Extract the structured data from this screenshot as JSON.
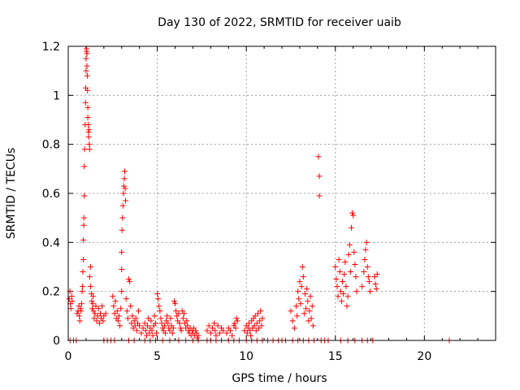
{
  "chart_data": {
    "type": "scatter",
    "title": "Day 130 of 2022, SRMTID for receiver uaib",
    "xlabel": "GPS time / hours",
    "ylabel": "SRMTID / TECUs",
    "xlim": [
      0,
      24
    ],
    "ylim": [
      0,
      1.2
    ],
    "x_ticks": [
      0,
      5,
      10,
      15,
      20
    ],
    "x_tick_labels": [
      "0",
      "5",
      "10",
      "15",
      "20"
    ],
    "y_ticks": [
      0,
      0.2,
      0.4,
      0.6,
      0.8,
      1.0,
      1.2
    ],
    "y_tick_labels": [
      "0",
      "0.2",
      "0.4",
      "0.6",
      "0.8",
      "1",
      "1.2"
    ],
    "grid": true,
    "marker": "+",
    "marker_color": "#ff0000",
    "series": [
      {
        "name": "SRMTID",
        "points": [
          [
            0.05,
            0.17
          ],
          [
            0.1,
            0.2
          ],
          [
            0.12,
            0.15
          ],
          [
            0.15,
            0.13
          ],
          [
            0.2,
            0.18
          ],
          [
            0.22,
            0.16
          ],
          [
            0.1,
            0.0
          ],
          [
            0.3,
            0.0
          ],
          [
            0.45,
            0.0
          ],
          [
            0.5,
            0.11
          ],
          [
            0.55,
            0.12
          ],
          [
            0.6,
            0.14
          ],
          [
            0.62,
            0.1
          ],
          [
            0.65,
            0.08
          ],
          [
            0.7,
            0.13
          ],
          [
            0.72,
            0.12
          ],
          [
            0.75,
            0.15
          ],
          [
            0.78,
            0.2
          ],
          [
            0.8,
            0.22
          ],
          [
            0.82,
            0.28
          ],
          [
            0.85,
            0.33
          ],
          [
            0.85,
            0.41
          ],
          [
            0.87,
            0.47
          ],
          [
            0.88,
            0.5
          ],
          [
            0.9,
            0.59
          ],
          [
            0.9,
            0.71
          ],
          [
            0.92,
            0.78
          ],
          [
            0.95,
            0.88
          ],
          [
            0.97,
            0.97
          ],
          [
            0.98,
            1.03
          ],
          [
            1.0,
            1.1
          ],
          [
            1.0,
            1.15
          ],
          [
            1.02,
            1.18
          ],
          [
            1.03,
            1.19
          ],
          [
            1.05,
            1.17
          ],
          [
            1.05,
            1.12
          ],
          [
            1.07,
            1.08
          ],
          [
            1.08,
            1.02
          ],
          [
            1.1,
            0.95
          ],
          [
            1.1,
            0.91
          ],
          [
            1.12,
            0.88
          ],
          [
            1.14,
            0.85
          ],
          [
            1.15,
            0.83
          ],
          [
            1.17,
            0.86
          ],
          [
            1.18,
            0.8
          ],
          [
            1.2,
            0.78
          ],
          [
            1.2,
            0.26
          ],
          [
            1.25,
            0.3
          ],
          [
            1.25,
            0.22
          ],
          [
            1.3,
            0.19
          ],
          [
            1.32,
            0.16
          ],
          [
            1.35,
            0.13
          ],
          [
            1.38,
            0.15
          ],
          [
            1.4,
            0.18
          ],
          [
            1.42,
            0.12
          ],
          [
            1.45,
            0.09
          ],
          [
            1.5,
            0.11
          ],
          [
            1.55,
            0.14
          ],
          [
            1.6,
            0.08
          ],
          [
            1.65,
            0.1
          ],
          [
            1.7,
            0.13
          ],
          [
            1.75,
            0.07
          ],
          [
            1.8,
            0.11
          ],
          [
            1.85,
            0.09
          ],
          [
            1.9,
            0.14
          ],
          [
            1.95,
            0.08
          ],
          [
            2.0,
            0.1
          ],
          [
            2.0,
            0.0
          ],
          [
            2.1,
            0.11
          ],
          [
            2.2,
            0.0
          ],
          [
            2.4,
            0.0
          ],
          [
            2.5,
            0.18
          ],
          [
            2.55,
            0.14
          ],
          [
            2.6,
            0.11
          ],
          [
            2.65,
            0.16
          ],
          [
            2.7,
            0.09
          ],
          [
            2.75,
            0.12
          ],
          [
            2.8,
            0.08
          ],
          [
            2.85,
            0.1
          ],
          [
            2.9,
            0.06
          ],
          [
            2.95,
            0.13
          ],
          [
            2.6,
            0.0
          ],
          [
            3.0,
            0.2
          ],
          [
            3.0,
            0.29
          ],
          [
            3.0,
            0.36
          ],
          [
            3.02,
            0.45
          ],
          [
            3.05,
            0.5
          ],
          [
            3.07,
            0.55
          ],
          [
            3.1,
            0.6
          ],
          [
            3.12,
            0.63
          ],
          [
            3.15,
            0.66
          ],
          [
            3.17,
            0.69
          ],
          [
            3.2,
            0.62
          ],
          [
            3.22,
            0.57
          ],
          [
            3.25,
            0.17
          ],
          [
            3.3,
            0.12
          ],
          [
            3.35,
            0.09
          ],
          [
            3.4,
            0.25
          ],
          [
            3.45,
            0.24
          ],
          [
            3.5,
            0.14
          ],
          [
            3.55,
            0.07
          ],
          [
            3.6,
            0.1
          ],
          [
            3.65,
            0.05
          ],
          [
            3.7,
            0.08
          ],
          [
            3.75,
            0.06
          ],
          [
            3.8,
            0.09
          ],
          [
            3.85,
            0.04
          ],
          [
            3.9,
            0.07
          ],
          [
            3.95,
            0.12
          ],
          [
            4.0,
            0.06
          ],
          [
            3.4,
            0.0
          ],
          [
            3.7,
            0.0
          ],
          [
            4.1,
            0.03
          ],
          [
            4.2,
            0.05
          ],
          [
            4.3,
            0.07
          ],
          [
            4.35,
            0.04
          ],
          [
            4.4,
            0.02
          ],
          [
            4.45,
            0.06
          ],
          [
            4.5,
            0.09
          ],
          [
            4.55,
            0.03
          ],
          [
            4.6,
            0.05
          ],
          [
            4.65,
            0.08
          ],
          [
            4.7,
            0.04
          ],
          [
            4.75,
            0.02
          ],
          [
            4.8,
            0.06
          ],
          [
            4.85,
            0.1
          ],
          [
            4.9,
            0.07
          ],
          [
            4.95,
            0.03
          ],
          [
            4.3,
            0.0
          ],
          [
            4.6,
            0.0
          ],
          [
            4.9,
            0.0
          ],
          [
            5.0,
            0.19
          ],
          [
            5.05,
            0.17
          ],
          [
            5.1,
            0.14
          ],
          [
            5.15,
            0.12
          ],
          [
            5.2,
            0.09
          ],
          [
            5.25,
            0.07
          ],
          [
            5.3,
            0.05
          ],
          [
            5.35,
            0.04
          ],
          [
            5.4,
            0.06
          ],
          [
            5.45,
            0.03
          ],
          [
            5.5,
            0.08
          ],
          [
            5.55,
            0.1
          ],
          [
            5.6,
            0.07
          ],
          [
            5.65,
            0.05
          ],
          [
            5.7,
            0.04
          ],
          [
            5.75,
            0.09
          ],
          [
            5.8,
            0.06
          ],
          [
            5.85,
            0.03
          ],
          [
            5.9,
            0.05
          ],
          [
            5.95,
            0.16
          ],
          [
            6.0,
            0.15
          ],
          [
            6.05,
            0.12
          ],
          [
            6.1,
            0.1
          ],
          [
            6.15,
            0.08
          ],
          [
            6.2,
            0.11
          ],
          [
            6.25,
            0.07
          ],
          [
            6.3,
            0.05
          ],
          [
            6.35,
            0.04
          ],
          [
            5.3,
            0.0
          ],
          [
            5.7,
            0.0
          ],
          [
            6.2,
            0.0
          ],
          [
            6.4,
            0.12
          ],
          [
            6.45,
            0.09
          ],
          [
            6.5,
            0.11
          ],
          [
            6.55,
            0.07
          ],
          [
            6.6,
            0.05
          ],
          [
            6.65,
            0.08
          ],
          [
            6.7,
            0.06
          ],
          [
            6.75,
            0.04
          ],
          [
            6.8,
            0.03
          ],
          [
            6.85,
            0.05
          ],
          [
            6.9,
            0.02
          ],
          [
            6.95,
            0.04
          ],
          [
            7.0,
            0.03
          ],
          [
            7.05,
            0.05
          ],
          [
            7.1,
            0.02
          ],
          [
            7.15,
            0.04
          ],
          [
            7.2,
            0.03
          ],
          [
            7.25,
            0.01
          ],
          [
            7.3,
            0.02
          ],
          [
            6.6,
            0.0
          ],
          [
            7.0,
            0.0
          ],
          [
            7.3,
            0.0
          ],
          [
            7.8,
            0.04
          ],
          [
            7.9,
            0.06
          ],
          [
            8.0,
            0.03
          ],
          [
            8.1,
            0.05
          ],
          [
            8.2,
            0.07
          ],
          [
            8.25,
            0.04
          ],
          [
            8.3,
            0.02
          ],
          [
            8.4,
            0.06
          ],
          [
            8.5,
            0.03
          ],
          [
            8.6,
            0.05
          ],
          [
            8.7,
            0.04
          ],
          [
            7.8,
            0.0
          ],
          [
            8.0,
            0.0
          ],
          [
            8.3,
            0.0
          ],
          [
            8.6,
            0.0
          ],
          [
            8.9,
            0.03
          ],
          [
            9.0,
            0.05
          ],
          [
            9.1,
            0.04
          ],
          [
            9.2,
            0.02
          ],
          [
            9.3,
            0.06
          ],
          [
            9.35,
            0.07
          ],
          [
            9.4,
            0.05
          ],
          [
            9.45,
            0.09
          ],
          [
            9.5,
            0.08
          ],
          [
            9.0,
            0.0
          ],
          [
            9.3,
            0.0
          ],
          [
            9.6,
            0.0
          ],
          [
            9.9,
            0.04
          ],
          [
            10.0,
            0.06
          ],
          [
            10.05,
            0.03
          ],
          [
            10.1,
            0.05
          ],
          [
            10.15,
            0.07
          ],
          [
            10.2,
            0.04
          ],
          [
            10.25,
            0.02
          ],
          [
            10.3,
            0.08
          ],
          [
            10.35,
            0.05
          ],
          [
            10.4,
            0.09
          ],
          [
            10.45,
            0.06
          ],
          [
            10.5,
            0.1
          ],
          [
            10.55,
            0.04
          ],
          [
            10.6,
            0.07
          ],
          [
            10.65,
            0.11
          ],
          [
            10.7,
            0.05
          ],
          [
            10.75,
            0.08
          ],
          [
            10.8,
            0.12
          ],
          [
            10.85,
            0.06
          ],
          [
            10.9,
            0.09
          ],
          [
            10.0,
            0.0
          ],
          [
            10.3,
            0.0
          ],
          [
            10.6,
            0.0
          ],
          [
            10.9,
            0.0
          ],
          [
            11.2,
            0.0
          ],
          [
            11.5,
            0.0
          ],
          [
            11.8,
            0.0
          ],
          [
            12.0,
            0.0
          ],
          [
            12.2,
            0.0
          ],
          [
            12.5,
            0.12
          ],
          [
            12.6,
            0.08
          ],
          [
            12.7,
            0.05
          ],
          [
            12.8,
            0.14
          ],
          [
            12.85,
            0.1
          ],
          [
            12.9,
            0.2
          ],
          [
            12.95,
            0.17
          ],
          [
            13.0,
            0.24
          ],
          [
            13.05,
            0.15
          ],
          [
            13.1,
            0.22
          ],
          [
            13.15,
            0.3
          ],
          [
            13.2,
            0.26
          ],
          [
            13.25,
            0.11
          ],
          [
            13.3,
            0.19
          ],
          [
            13.35,
            0.13
          ],
          [
            13.4,
            0.21
          ],
          [
            13.45,
            0.16
          ],
          [
            13.5,
            0.08
          ],
          [
            13.55,
            0.12
          ],
          [
            13.6,
            0.18
          ],
          [
            13.65,
            0.09
          ],
          [
            13.7,
            0.14
          ],
          [
            13.75,
            0.06
          ],
          [
            12.6,
            0.0
          ],
          [
            12.9,
            0.0
          ],
          [
            13.2,
            0.0
          ],
          [
            13.5,
            0.0
          ],
          [
            13.8,
            0.0
          ],
          [
            14.05,
            0.75
          ],
          [
            14.1,
            0.67
          ],
          [
            14.1,
            0.59
          ],
          [
            14.2,
            0.0
          ],
          [
            14.4,
            0.0
          ],
          [
            14.6,
            0.0
          ],
          [
            15.0,
            0.3
          ],
          [
            15.05,
            0.25
          ],
          [
            15.1,
            0.22
          ],
          [
            15.15,
            0.18
          ],
          [
            15.2,
            0.33
          ],
          [
            15.25,
            0.28
          ],
          [
            15.3,
            0.2
          ],
          [
            15.35,
            0.16
          ],
          [
            15.4,
            0.24
          ],
          [
            15.45,
            0.19
          ],
          [
            15.5,
            0.27
          ],
          [
            15.55,
            0.32
          ],
          [
            15.6,
            0.22
          ],
          [
            15.65,
            0.14
          ],
          [
            15.7,
            0.18
          ],
          [
            15.75,
            0.35
          ],
          [
            15.8,
            0.39
          ],
          [
            15.85,
            0.28
          ],
          [
            15.9,
            0.46
          ],
          [
            15.95,
            0.52
          ],
          [
            16.0,
            0.51
          ],
          [
            16.05,
            0.36
          ],
          [
            16.1,
            0.31
          ],
          [
            16.15,
            0.26
          ],
          [
            16.2,
            0.2
          ],
          [
            15.3,
            0.0
          ],
          [
            15.7,
            0.0
          ],
          [
            16.1,
            0.0
          ],
          [
            16.5,
            0.22
          ],
          [
            16.6,
            0.28
          ],
          [
            16.65,
            0.33
          ],
          [
            16.7,
            0.37
          ],
          [
            16.75,
            0.4
          ],
          [
            16.8,
            0.3
          ],
          [
            16.85,
            0.26
          ],
          [
            16.9,
            0.24
          ],
          [
            16.95,
            0.2
          ],
          [
            16.5,
            0.0
          ],
          [
            16.8,
            0.0
          ],
          [
            17.1,
            0.0
          ],
          [
            17.2,
            0.26
          ],
          [
            17.25,
            0.23
          ],
          [
            17.3,
            0.21
          ],
          [
            17.35,
            0.27
          ],
          [
            21.4,
            0.0
          ]
        ]
      }
    ]
  }
}
